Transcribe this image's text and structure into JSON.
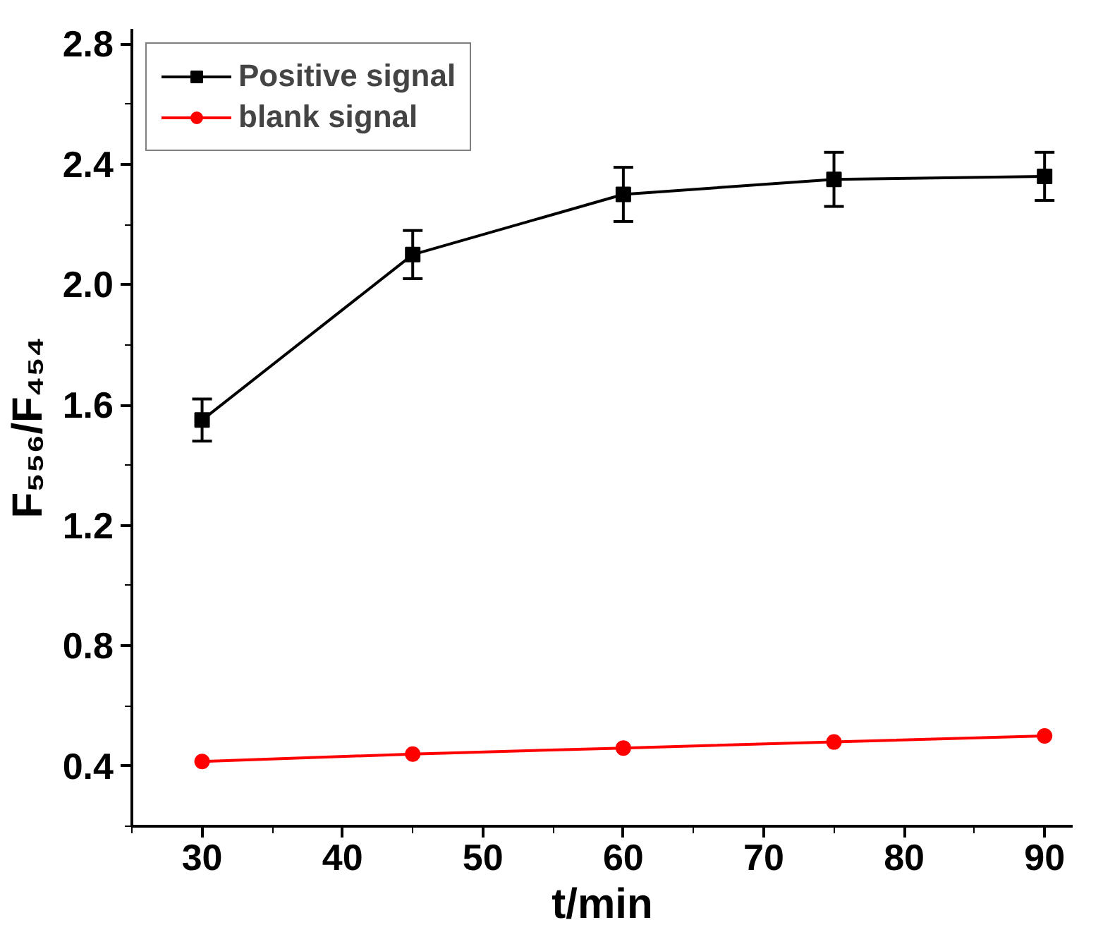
{
  "chart_data": {
    "type": "line",
    "xlabel": "t/min",
    "ylabel": "F₅₅₆/F₄₅₄",
    "x": [
      30,
      45,
      60,
      75,
      90
    ],
    "series": [
      {
        "name": "Positive signal",
        "color": "#000000",
        "marker": "square",
        "values": [
          1.55,
          2.1,
          2.3,
          2.35,
          2.36
        ],
        "errors": [
          0.07,
          0.08,
          0.09,
          0.09,
          0.08
        ]
      },
      {
        "name": "blank signal",
        "color": "#ff0000",
        "marker": "circle",
        "values": [
          0.415,
          0.44,
          0.46,
          0.48,
          0.5
        ]
      }
    ],
    "xlim": [
      25,
      92
    ],
    "xticks": [
      30,
      40,
      50,
      60,
      70,
      80,
      90
    ],
    "ylim": [
      0.2,
      2.85
    ],
    "yticks": [
      {
        "value": 0.4,
        "label": "0.4"
      },
      {
        "value": 0.8,
        "label": "0.8"
      },
      {
        "value": 1.2,
        "label": "1.2"
      },
      {
        "value": 1.6,
        "label": "1.6"
      },
      {
        "value": 2.0,
        "label": "2.0"
      },
      {
        "value": 2.4,
        "label": "2.4"
      },
      {
        "value": 2.8,
        "label": "2.8"
      }
    ],
    "legend": "top left",
    "grid": false,
    "line_style": "solid"
  }
}
